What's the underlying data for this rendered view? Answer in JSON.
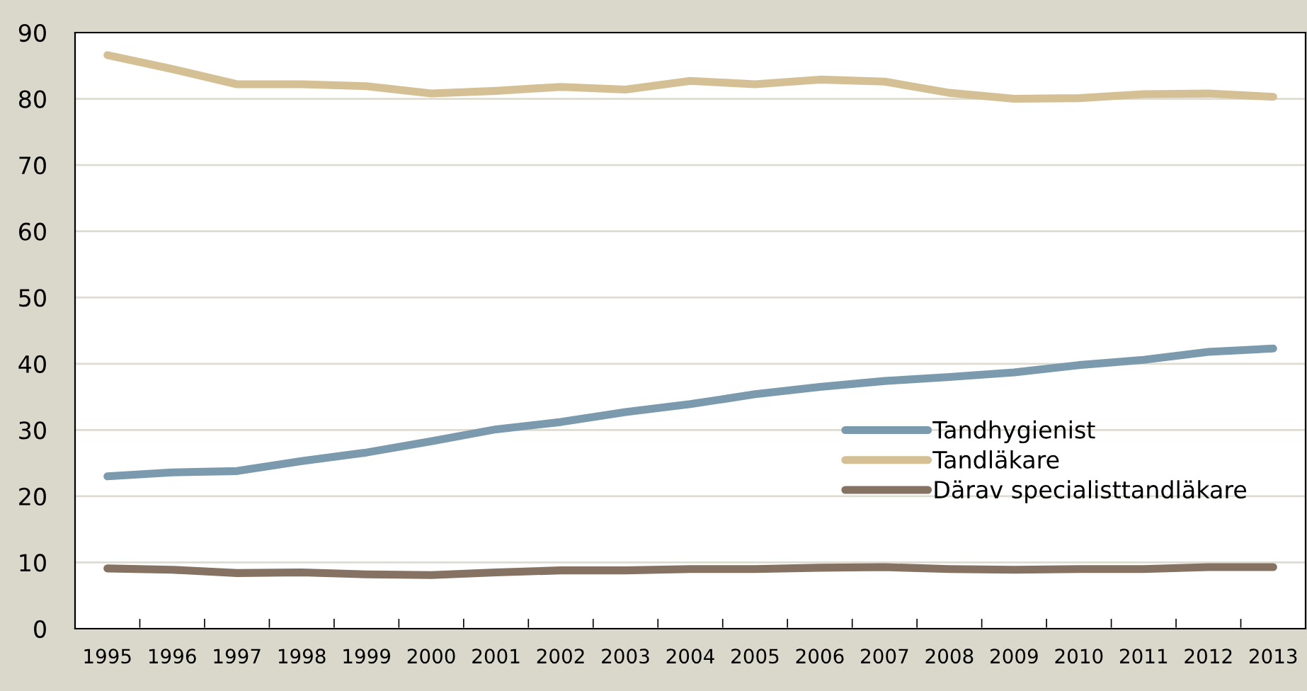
{
  "chart_data": {
    "type": "line",
    "categories": [
      "1995",
      "1996",
      "1997",
      "1998",
      "1999",
      "2000",
      "2001",
      "2002",
      "2003",
      "2004",
      "2005",
      "2006",
      "2007",
      "2008",
      "2009",
      "2010",
      "2011",
      "2012",
      "2013"
    ],
    "series": [
      {
        "name": "Tandhygienist",
        "color": "#7b9aad",
        "values": [
          23.0,
          23.6,
          23.8,
          25.3,
          26.6,
          28.3,
          30.1,
          31.2,
          32.7,
          33.9,
          35.4,
          36.5,
          37.4,
          38.0,
          38.7,
          39.8,
          40.6,
          41.8,
          42.3
        ]
      },
      {
        "name": "Tandläkare",
        "color": "#d4c094",
        "values": [
          86.6,
          84.5,
          82.2,
          82.2,
          81.9,
          80.8,
          81.2,
          81.8,
          81.4,
          82.7,
          82.2,
          82.9,
          82.6,
          80.9,
          80.0,
          80.1,
          80.7,
          80.8,
          80.3
        ]
      },
      {
        "name": "Därav specialisttandläkare",
        "color": "#857262",
        "values": [
          9.1,
          8.9,
          8.4,
          8.5,
          8.2,
          8.1,
          8.5,
          8.8,
          8.8,
          9.0,
          9.0,
          9.2,
          9.3,
          9.0,
          8.9,
          9.0,
          9.0,
          9.3,
          9.3
        ]
      }
    ],
    "ylim": [
      0,
      90
    ],
    "yticks": [
      0,
      10,
      20,
      30,
      40,
      50,
      60,
      70,
      80,
      90
    ],
    "grid": "y",
    "legend": "center right",
    "marker": "none",
    "line_style": "solid"
  }
}
